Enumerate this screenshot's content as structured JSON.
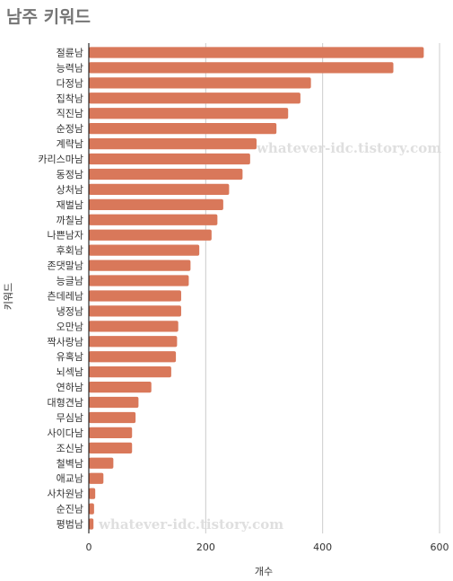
{
  "title": "남주 키워드",
  "watermarks": [
    "whatever-idc.tistory.com",
    "whatever-idc.tistory.com"
  ],
  "colors": {
    "bar": "#d9785a",
    "grid": "#cccccc",
    "axis": "#000000"
  },
  "chart_data": {
    "type": "bar",
    "orientation": "horizontal",
    "title": "남주 키워드",
    "xlabel": "개수",
    "ylabel": "키워드",
    "xlim": [
      0,
      600
    ],
    "xticks": [
      0,
      200,
      400,
      600
    ],
    "grid": true,
    "categories": [
      "절륜남",
      "능력남",
      "다정남",
      "집착남",
      "직진남",
      "순정남",
      "계략남",
      "카리스마남",
      "동정남",
      "상처남",
      "재벌남",
      "까칠남",
      "나쁜남자",
      "후회남",
      "존댓말남",
      "능글남",
      "츤데레남",
      "냉정남",
      "오만남",
      "짝사랑남",
      "유혹남",
      "뇌섹남",
      "연하남",
      "대형견남",
      "무심남",
      "사이다남",
      "조신남",
      "철벽남",
      "애교남",
      "사차원남",
      "순진남",
      "평범남"
    ],
    "values": [
      573,
      521,
      380,
      362,
      341,
      321,
      287,
      276,
      263,
      240,
      230,
      220,
      210,
      189,
      174,
      171,
      158,
      158,
      153,
      151,
      149,
      141,
      107,
      85,
      80,
      74,
      74,
      42,
      25,
      11,
      9,
      8
    ]
  }
}
